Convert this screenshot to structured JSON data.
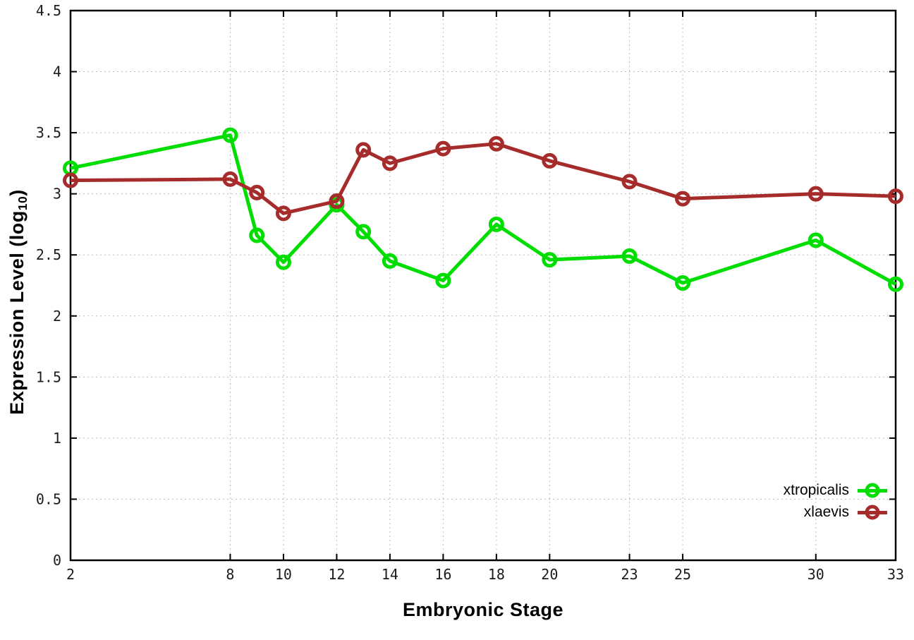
{
  "chart_data": {
    "type": "line",
    "title": "",
    "xlabel": "Embryonic Stage",
    "ylabel_main": "Expression Level (log",
    "ylabel_sub": "10",
    "ylabel_close": ")",
    "x": [
      2,
      8,
      9,
      10,
      12,
      13,
      14,
      16,
      18,
      20,
      23,
      25,
      30,
      33
    ],
    "x_ticks": [
      2,
      8,
      10,
      12,
      14,
      16,
      18,
      20,
      23,
      25,
      30,
      33
    ],
    "y_ticks": [
      0,
      0.5,
      1,
      1.5,
      2,
      2.5,
      3,
      3.5,
      4,
      4.5
    ],
    "xlim": [
      2,
      33
    ],
    "ylim": [
      0,
      4.5
    ],
    "grid": true,
    "legend_position": "bottom-right",
    "series": [
      {
        "name": "xtropicalis",
        "color": "#00dd00",
        "marker": "open-circle",
        "values": [
          3.21,
          3.48,
          2.66,
          2.44,
          2.91,
          2.69,
          2.45,
          2.29,
          2.75,
          2.46,
          2.49,
          2.27,
          2.62,
          2.26
        ]
      },
      {
        "name": "xlaevis",
        "color": "#a62c2c",
        "marker": "open-circle",
        "values": [
          3.11,
          3.12,
          3.01,
          2.84,
          2.94,
          3.36,
          3.25,
          3.37,
          3.41,
          3.27,
          3.1,
          2.96,
          3.0,
          2.98
        ]
      }
    ]
  }
}
